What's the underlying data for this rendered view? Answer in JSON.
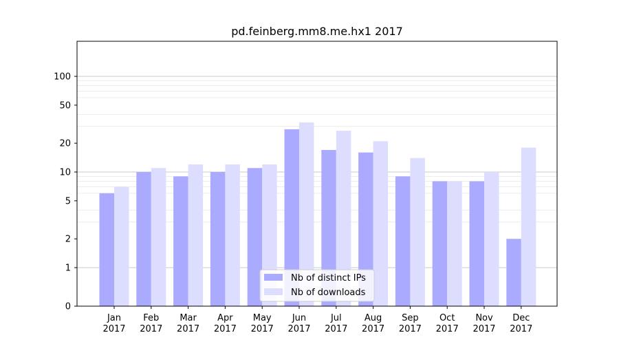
{
  "chart_data": {
    "type": "bar",
    "title": "pd.feinberg.mm8.me.hx1 2017",
    "xlabel": "",
    "ylabel": "",
    "y_scale": "symlog",
    "ylim": [
      0,
      120
    ],
    "y_ticks": [
      0,
      1,
      2,
      5,
      10,
      20,
      50,
      100
    ],
    "y_tick_labels": [
      "0",
      "1",
      "2",
      "5",
      "10",
      "20",
      "50",
      "100"
    ],
    "categories": [
      "Jan",
      "Feb",
      "Mar",
      "Apr",
      "May",
      "Jun",
      "Jul",
      "Aug",
      "Sep",
      "Oct",
      "Nov",
      "Dec"
    ],
    "category_sublabels": [
      "2017",
      "2017",
      "2017",
      "2017",
      "2017",
      "2017",
      "2017",
      "2017",
      "2017",
      "2017",
      "2017",
      "2017"
    ],
    "series": [
      {
        "name": "Nb of distinct IPs",
        "color": "#aaaaff",
        "values": [
          6,
          10,
          9,
          10,
          11,
          28,
          17,
          16,
          9,
          8,
          8,
          2
        ]
      },
      {
        "name": "Nb of downloads",
        "color": "#ddddff",
        "values": [
          7,
          11,
          12,
          12,
          12,
          33,
          27,
          21,
          14,
          8,
          10,
          18
        ]
      }
    ],
    "legend_position": "bottom-center",
    "grid": true
  }
}
